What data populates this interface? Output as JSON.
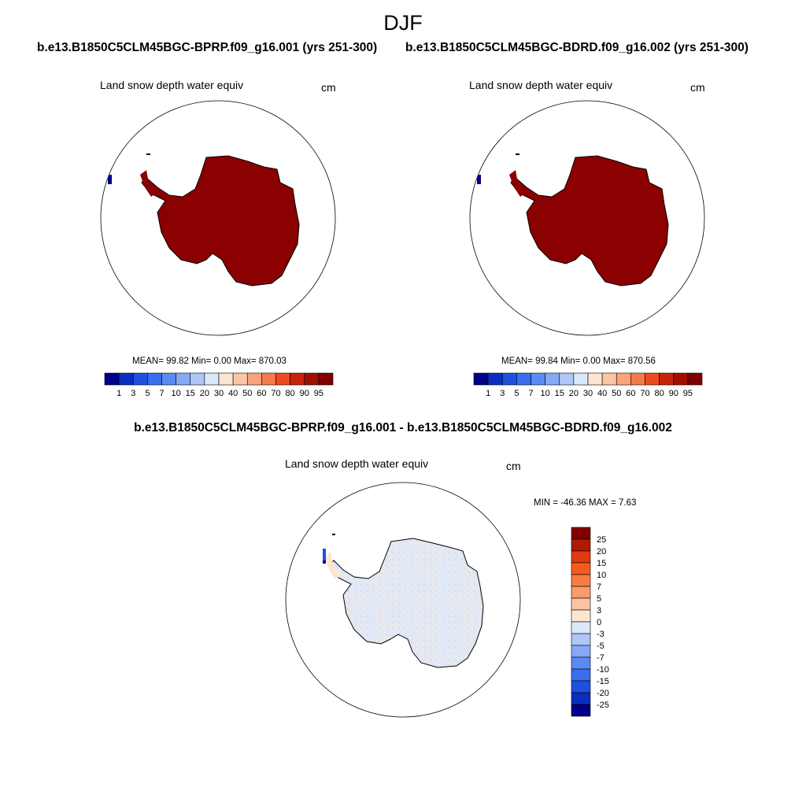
{
  "main_title": "DJF",
  "left_case": "b.e13.B1850C5CLM45BGC-BPRP.f09_g16.001 (yrs 251-300)",
  "right_case": "b.e13.B1850C5CLM45BGC-BDRD.f09_g16.002 (yrs 251-300)",
  "diff_title": "b.e13.B1850C5CLM45BGC-BPRP.f09_g16.001 - b.e13.B1850C5CLM45BGC-BDRD.f09_g16.002",
  "var_label": "Land snow depth water equiv",
  "unit": "cm",
  "left_stats": "MEAN=  99.82  Min=    0.00  Max= 870.03",
  "right_stats": "MEAN=  99.84  Min=    0.00  Max= 870.56",
  "diff_stats": "MIN = -46.36 MAX =   7.63",
  "colorbar_top": {
    "labels": [
      "1",
      "3",
      "5",
      "7",
      "10",
      "15",
      "20",
      "30",
      "40",
      "50",
      "60",
      "70",
      "80",
      "90",
      "95"
    ],
    "colors": [
      "#00008b",
      "#0a2fc0",
      "#1f50e0",
      "#3a6ef0",
      "#5b8af5",
      "#86a9f7",
      "#aec6f8",
      "#dbe8fb",
      "#fde5d2",
      "#fcc5a3",
      "#f9a47a",
      "#f57a4b",
      "#ec4a1f",
      "#c8240b",
      "#a10f03",
      "#800000"
    ]
  },
  "colorbar_diff": {
    "labels": [
      "25",
      "20",
      "15",
      "10",
      "7",
      "5",
      "3",
      "0",
      "-3",
      "-5",
      "-7",
      "-10",
      "-15",
      "-20",
      "-25"
    ],
    "colors": [
      "#800000",
      "#b21a00",
      "#e03a10",
      "#f85a1c",
      "#f97a45",
      "#fb9a6a",
      "#fcc3a0",
      "#fde5d2",
      "#dbe8fb",
      "#aec6f8",
      "#86a9f7",
      "#5b8af5",
      "#3a6ef0",
      "#1f50e0",
      "#0a2fc0",
      "#00008b"
    ]
  },
  "map_colors": {
    "dark_red": "#8b0000",
    "diff_pos": "#fde6d2",
    "diff_neg": "#dce9fb",
    "navy": "#00008b"
  }
}
